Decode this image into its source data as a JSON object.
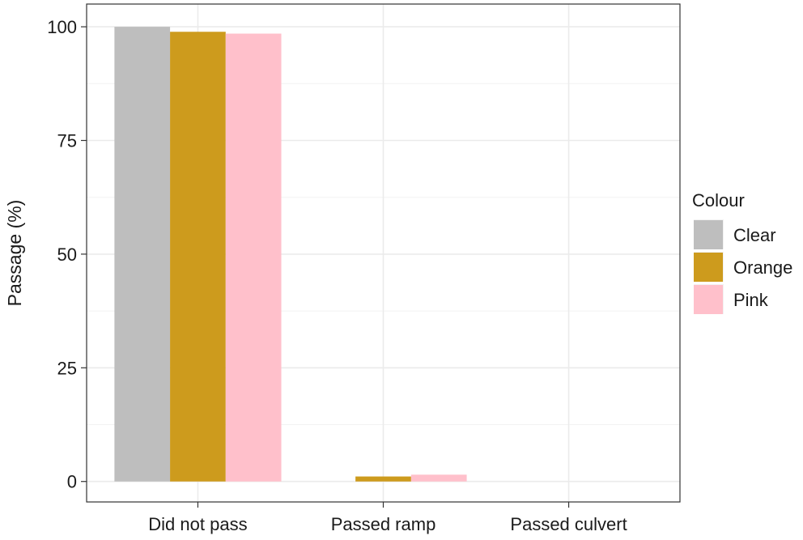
{
  "chart_data": {
    "type": "bar",
    "categories": [
      "Did not pass",
      "Passed ramp",
      "Passed culvert"
    ],
    "series": [
      {
        "name": "Clear",
        "color": "#BEBEBE",
        "values": [
          100,
          0,
          0
        ]
      },
      {
        "name": "Orange",
        "color": "#CD9B1D",
        "values": [
          98.9,
          1.1,
          0
        ]
      },
      {
        "name": "Pink",
        "color": "#FFC0CB",
        "values": [
          98.5,
          1.5,
          0
        ]
      }
    ],
    "ylabel": "Passage (%)",
    "xlabel": "",
    "ylim": [
      -4.5,
      105
    ],
    "yticks": [
      0,
      25,
      50,
      75,
      100
    ],
    "grid": true,
    "legend": {
      "title": "Colour",
      "position": "right"
    }
  }
}
